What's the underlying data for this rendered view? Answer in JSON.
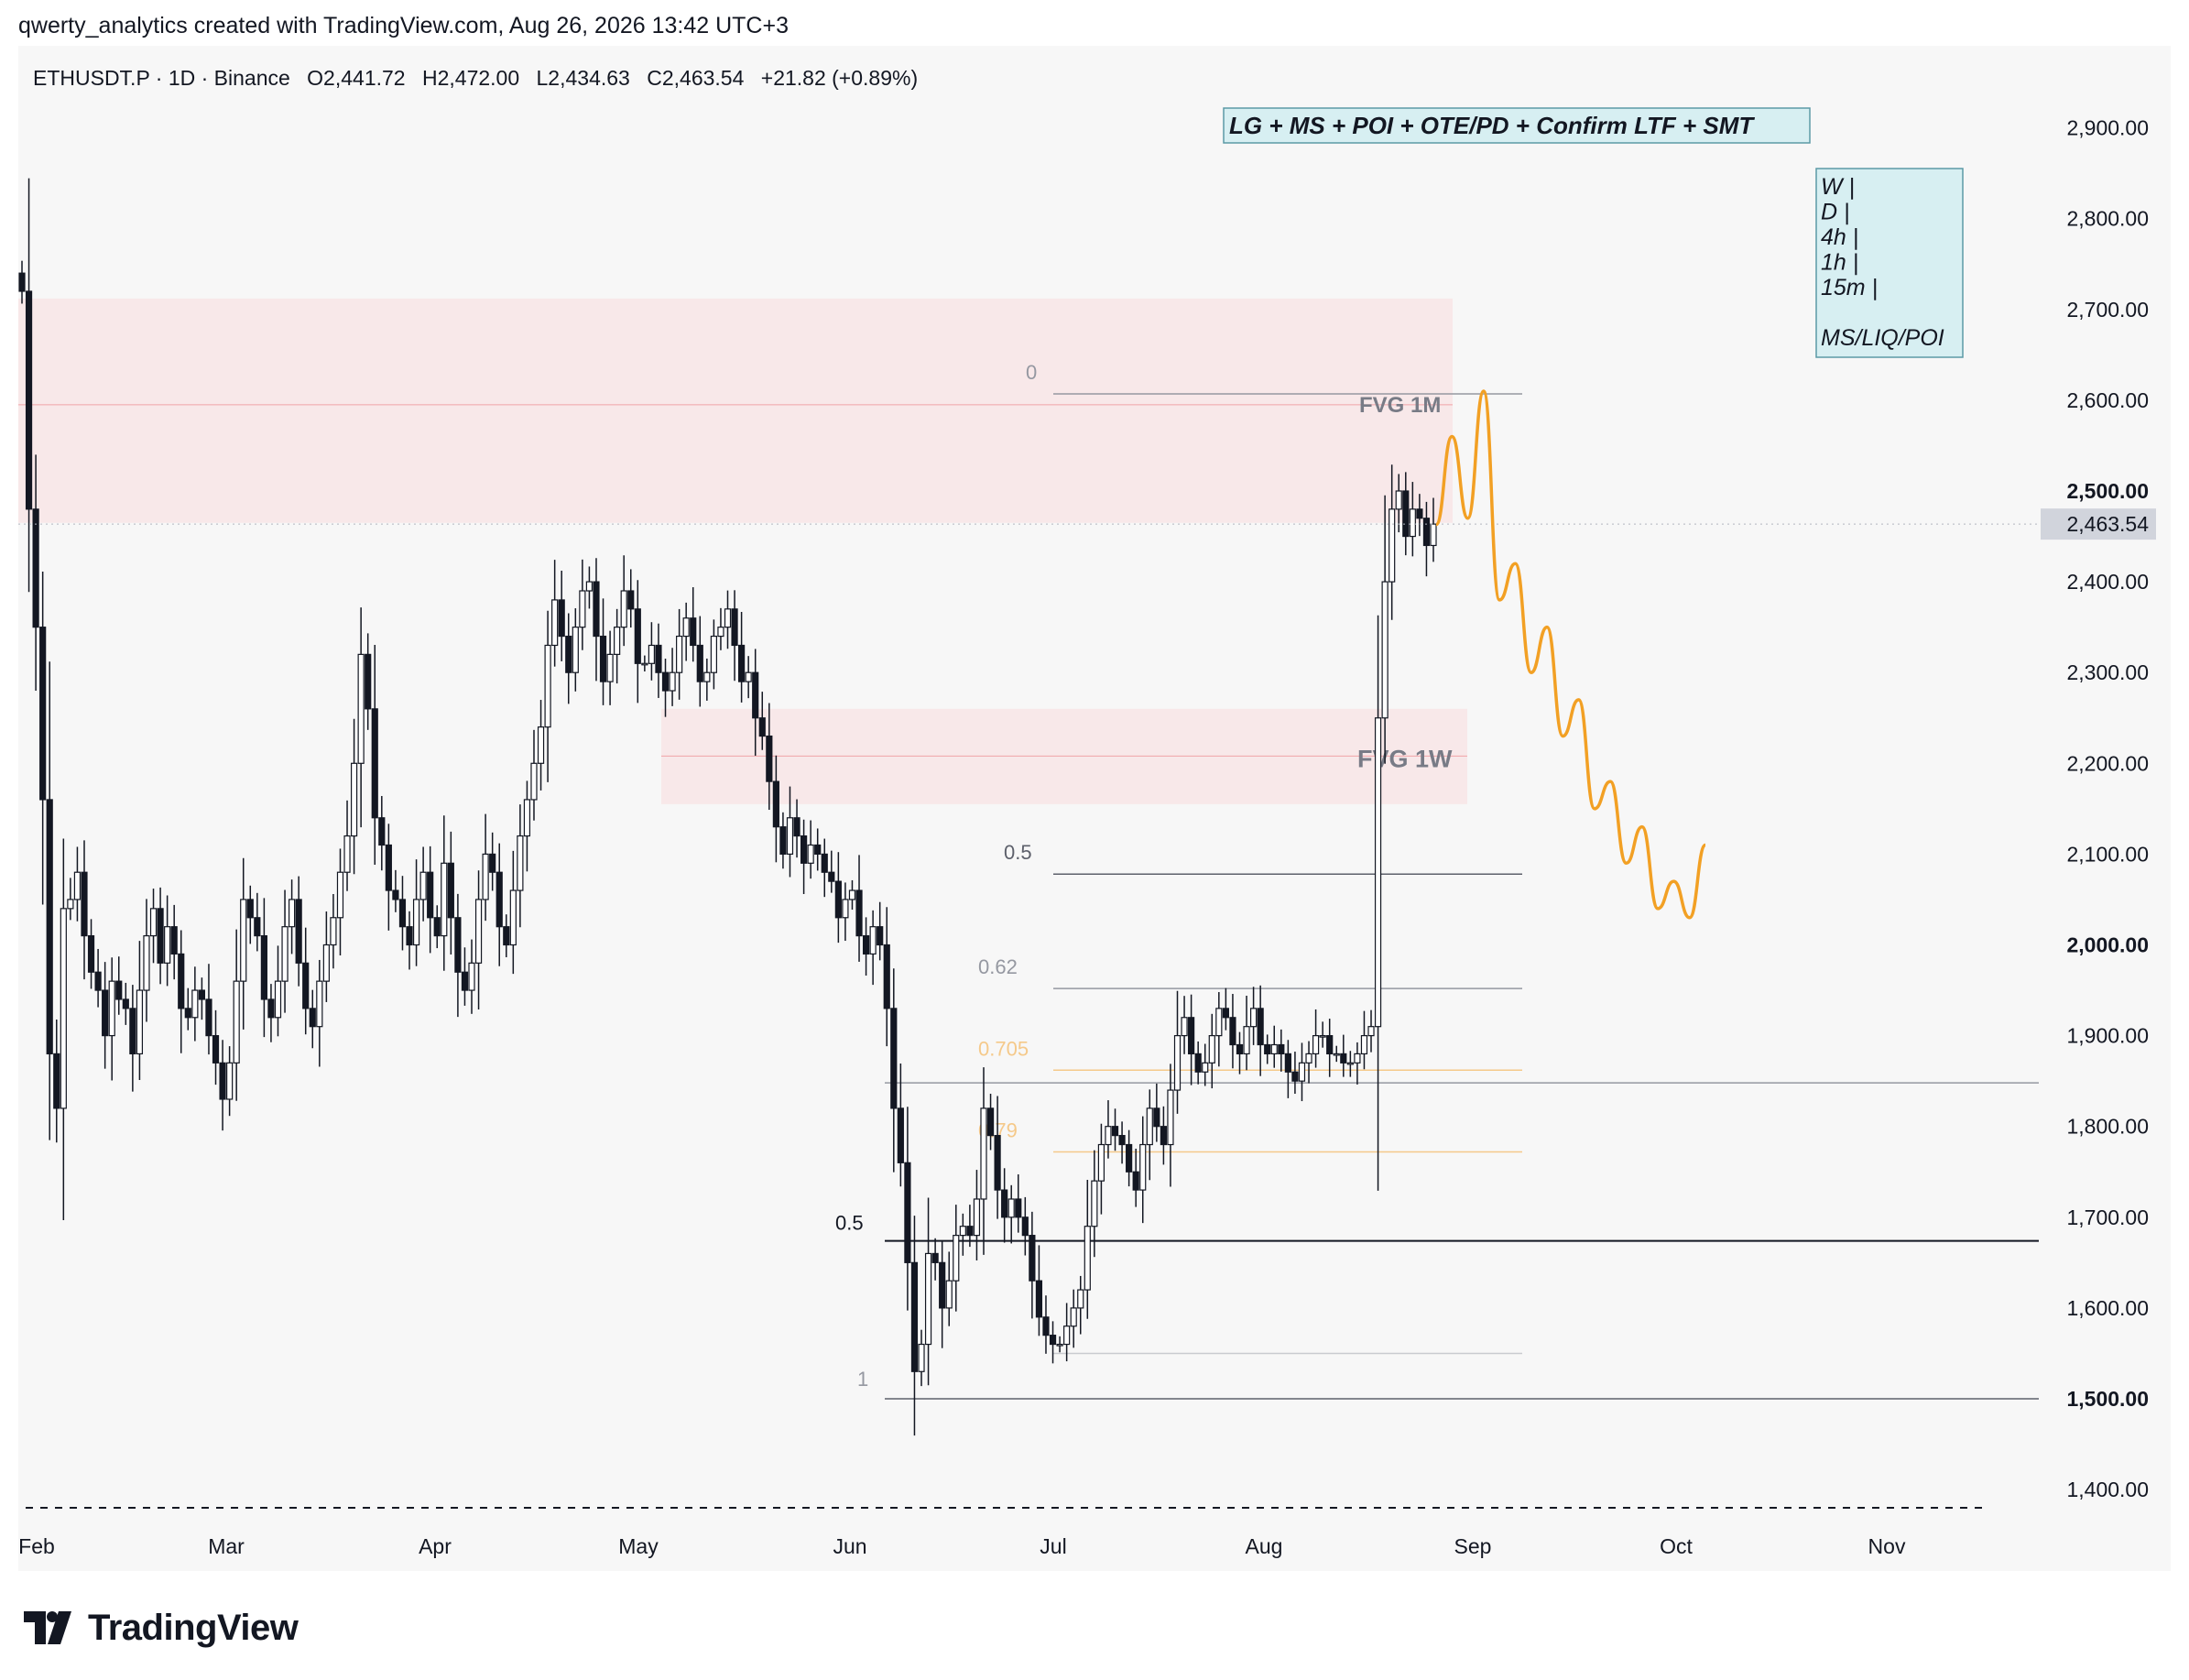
{
  "header": {
    "credit": "qwerty_analytics created with TradingView.com, Aug 26, 2026 13:42 UTC+3"
  },
  "symbol_bar": {
    "symbol": "ETHUSDT.P · 1D · Binance",
    "open": "O2,441.72",
    "high": "H2,472.00",
    "low": "L2,434.63",
    "close": "C2,463.54",
    "change": "+21.82 (+0.89%)"
  },
  "annotations": {
    "strategy_banner": "LG + MS + POI + OTE/PD + Confirm LTF + SMT",
    "timeframes_box": [
      "W |",
      "D |",
      "4h |",
      "1h |",
      "15m |",
      "",
      "MS/LIQ/POI"
    ],
    "fvg_month": "FVG 1M",
    "fvg_week": "FVG 1W",
    "fib_labels": {
      "upper": [
        "0",
        "0.5",
        "0.62",
        "0.705",
        "0.79",
        "1"
      ],
      "lower_mid": "0.5"
    }
  },
  "price_axis": {
    "labels": [
      "2,900.00",
      "2,800.00",
      "2,700.00",
      "2,600.00",
      "2,500.00",
      "2,400.00",
      "2,300.00",
      "2,200.00",
      "2,100.00",
      "2,000.00",
      "1,900.00",
      "1,800.00",
      "1,700.00",
      "1,600.00",
      "1,500.00",
      "1,400.00"
    ],
    "bold_labels": [
      "2,500.00",
      "2,000.00",
      "1,500.00"
    ],
    "current_price": "2,463.54"
  },
  "time_axis": {
    "labels": [
      "Feb",
      "Mar",
      "Apr",
      "May",
      "Jun",
      "Jul",
      "Aug",
      "Sep",
      "Oct",
      "Nov"
    ]
  },
  "footer": {
    "brand": "TradingView"
  },
  "colors": {
    "candle": "#131722",
    "supply_zone": "#f8e1e3",
    "projection": "#f2a024",
    "fib_orange": "#f5c98a",
    "banner_bg": "#d7eff2",
    "price_tag_bg": "#d1d4dc"
  },
  "chart_data": {
    "type": "candlestick",
    "symbol": "ETHUSDT.P",
    "interval": "1D",
    "ylim": [
      1350,
      2980
    ],
    "x_labels": [
      "Feb",
      "Mar",
      "Apr",
      "May",
      "Jun",
      "Jul",
      "Aug",
      "Sep",
      "Oct",
      "Nov"
    ],
    "approx_daily_closes": [
      2720,
      2480,
      2350,
      2160,
      1880,
      1820,
      2040,
      2050,
      2080,
      2010,
      1970,
      1950,
      1900,
      1960,
      1940,
      1930,
      1880,
      1950,
      2010,
      2040,
      1980,
      2020,
      1990,
      1930,
      1920,
      1950,
      1940,
      1900,
      1870,
      1830,
      1870,
      1960,
      2050,
      2030,
      2010,
      1940,
      1920,
      1960,
      2020,
      2050,
      1980,
      1930,
      1910,
      1960,
      2000,
      2030,
      2080,
      2120,
      2200,
      2320,
      2260,
      2140,
      2110,
      2060,
      2050,
      2020,
      2000,
      2050,
      2080,
      2030,
      2010,
      2090,
      2030,
      1970,
      1950,
      1980,
      2050,
      2100,
      2080,
      2020,
      2000,
      2060,
      2120,
      2160,
      2200,
      2240,
      2330,
      2380,
      2340,
      2300,
      2350,
      2390,
      2400,
      2340,
      2290,
      2320,
      2350,
      2390,
      2370,
      2310,
      2310,
      2330,
      2300,
      2280,
      2300,
      2340,
      2360,
      2330,
      2290,
      2300,
      2340,
      2350,
      2370,
      2330,
      2290,
      2300,
      2250,
      2230,
      2180,
      2130,
      2100,
      2140,
      2120,
      2090,
      2110,
      2100,
      2080,
      2070,
      2030,
      2050,
      2060,
      2010,
      1990,
      2020,
      2000,
      1930,
      1820,
      1760,
      1650,
      1530,
      1560,
      1660,
      1650,
      1600,
      1630,
      1680,
      1690,
      1680,
      1720,
      1820,
      1790,
      1730,
      1700,
      1720,
      1700,
      1680,
      1630,
      1590,
      1570,
      1560,
      1560,
      1580,
      1600,
      1620,
      1690,
      1740,
      1780,
      1800,
      1790,
      1780,
      1750,
      1730,
      1780,
      1820,
      1800,
      1780,
      1840,
      1900,
      1920,
      1880,
      1860,
      1870,
      1900,
      1930,
      1920,
      1890,
      1880,
      1910,
      1930,
      1890,
      1880,
      1890,
      1880,
      1860,
      1850,
      1870,
      1880,
      1900,
      1900,
      1880,
      1880,
      1870,
      1870,
      1880,
      1900,
      1910,
      2250,
      2400,
      2480,
      2500,
      2450,
      2480,
      2470,
      2440,
      2463.54
    ],
    "last_candle": {
      "open": 2441.72,
      "high": 2472.0,
      "low": 2434.63,
      "close": 2463.54
    },
    "zones": [
      {
        "label": "FVG 1M",
        "low": 2465,
        "high": 2712,
        "mid": 2595
      },
      {
        "label": "FVG 1W",
        "low": 2155,
        "high": 2260,
        "mid": 2208
      }
    ],
    "fib_levels_upper": [
      {
        "label": "0",
        "price": 2607
      },
      {
        "label": "0.5",
        "price": 2078
      },
      {
        "label": "0.62",
        "price": 1952
      },
      {
        "label": "0.705",
        "price": 1862
      },
      {
        "label": "0.79",
        "price": 1772
      },
      {
        "label": "1",
        "price": 1500
      }
    ],
    "fib_levels_lower": [
      {
        "label": "0.5",
        "price": 1674
      },
      {
        "label": "",
        "price": 1848
      }
    ],
    "projection_path": [
      2463,
      2560,
      2470,
      2610,
      2380,
      2420,
      2300,
      2350,
      2230,
      2270,
      2150,
      2180,
      2090,
      2130,
      2040,
      2070,
      2030,
      2110
    ]
  }
}
